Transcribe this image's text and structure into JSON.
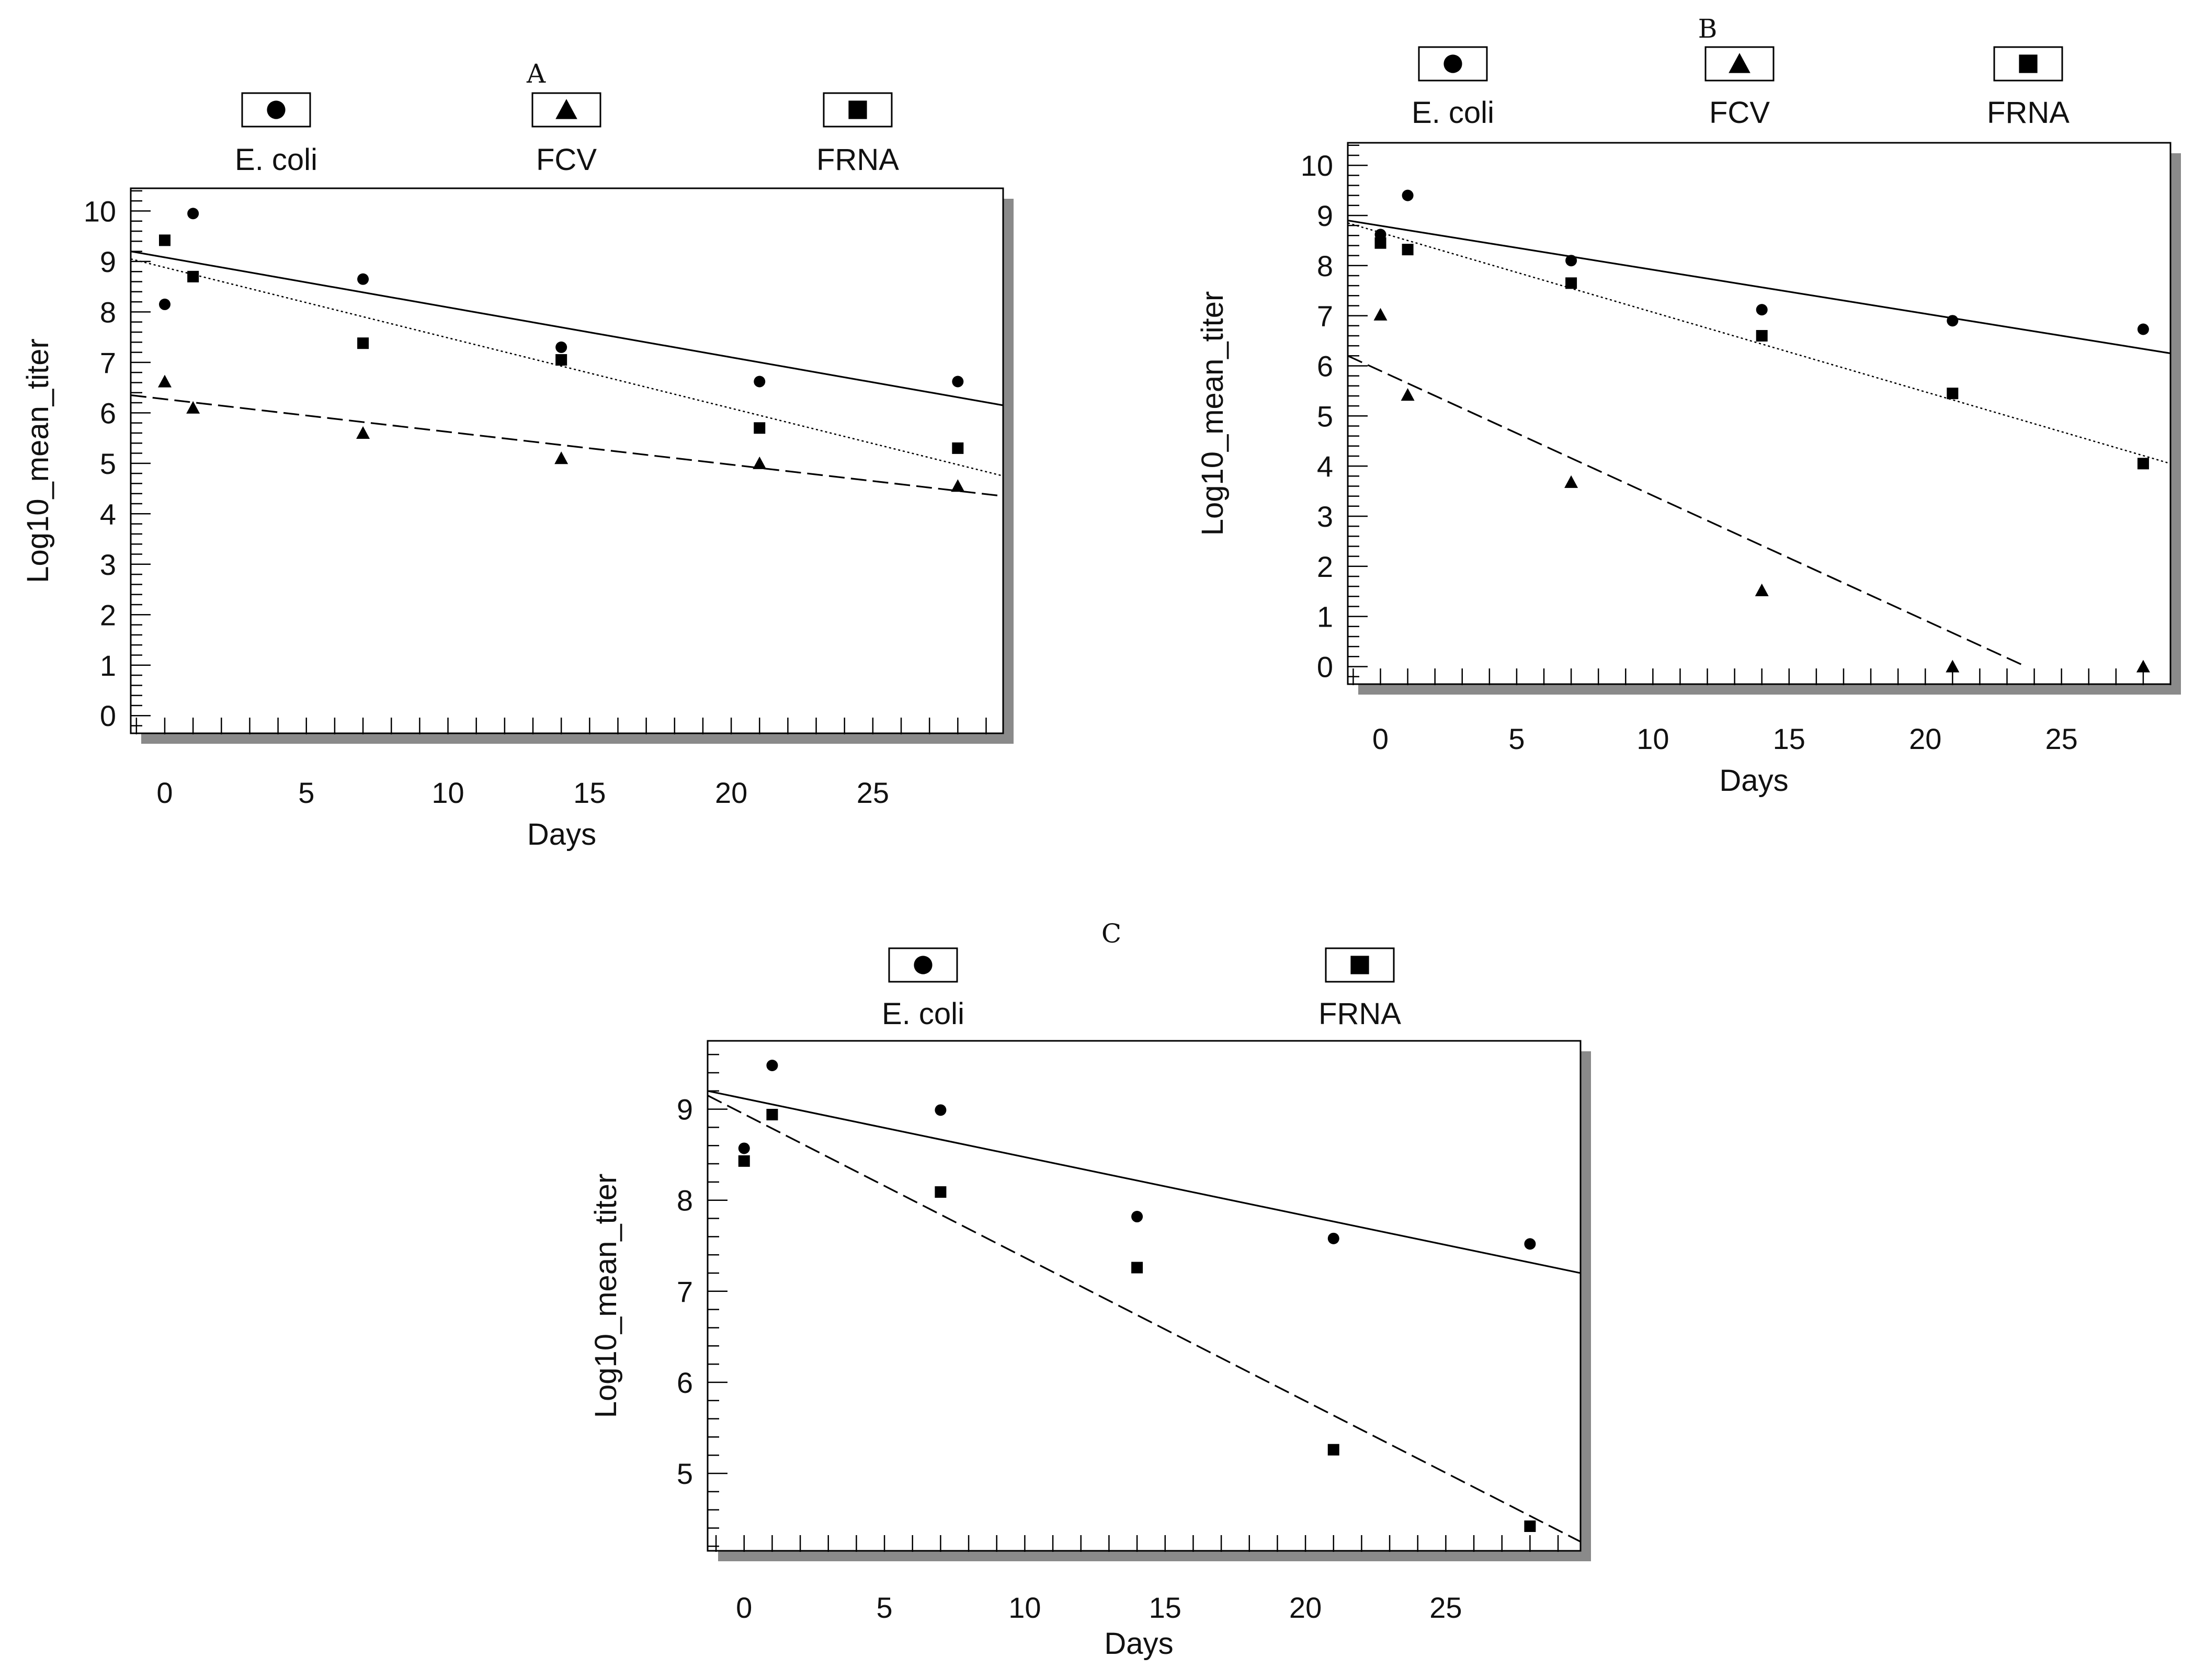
{
  "chart_data": [
    {
      "panel": "A",
      "type": "scatter",
      "xlabel": "Days",
      "ylabel": "Log10_mean_titer",
      "xlim": [
        -1.2,
        29.6
      ],
      "ylim": [
        -0.35,
        10.45
      ],
      "xticks": [
        0,
        5,
        10,
        15,
        20,
        25
      ],
      "yticks": [
        0,
        1,
        2,
        3,
        4,
        5,
        6,
        7,
        8,
        9,
        10
      ],
      "legend": {
        "placement": "top"
      },
      "series": [
        {
          "name": "E. coli",
          "marker": "circle",
          "line": "solid",
          "x": [
            0,
            1,
            7,
            14,
            21,
            28
          ],
          "y": [
            8.15,
            9.95,
            8.65,
            7.3,
            6.62,
            6.62
          ],
          "fit": {
            "x": [
              -1.2,
              29.6
            ],
            "y": [
              9.2,
              6.15
            ]
          }
        },
        {
          "name": "FCV",
          "marker": "triangle",
          "line": "dashed",
          "x": [
            0,
            1,
            7,
            14,
            21,
            28
          ],
          "y": [
            6.62,
            6.1,
            5.6,
            5.1,
            5.0,
            4.55
          ],
          "fit": {
            "x": [
              -1.2,
              29.6
            ],
            "y": [
              6.35,
              4.35
            ]
          }
        },
        {
          "name": "FRNA",
          "marker": "square",
          "line": "dotted",
          "x": [
            0,
            1,
            7,
            14,
            21,
            28
          ],
          "y": [
            9.42,
            8.7,
            7.38,
            7.05,
            5.7,
            5.3
          ],
          "fit": {
            "x": [
              -1.2,
              29.6
            ],
            "y": [
              9.05,
              4.75
            ]
          }
        }
      ]
    },
    {
      "panel": "B",
      "type": "scatter",
      "xlabel": "Days",
      "ylabel": "Log10_mean_titer",
      "xlim": [
        -1.2,
        29.0
      ],
      "ylim": [
        -0.35,
        10.45
      ],
      "xticks": [
        0,
        5,
        10,
        15,
        20,
        25
      ],
      "yticks": [
        0,
        1,
        2,
        3,
        4,
        5,
        6,
        7,
        8,
        9,
        10
      ],
      "legend": {
        "placement": "top"
      },
      "series": [
        {
          "name": "E. coli",
          "marker": "circle",
          "line": "solid",
          "x": [
            0,
            1,
            7,
            14,
            21,
            28
          ],
          "y": [
            8.62,
            9.4,
            8.1,
            7.12,
            6.9,
            6.73
          ],
          "fit": {
            "x": [
              -1.2,
              29.0
            ],
            "y": [
              8.9,
              6.25
            ]
          }
        },
        {
          "name": "FCV",
          "marker": "triangle",
          "line": "dashed",
          "x": [
            0,
            1,
            7,
            14,
            21,
            28
          ],
          "y": [
            7.02,
            5.42,
            3.68,
            1.52,
            0.0,
            0.0
          ],
          "fit": {
            "x": [
              -1.2,
              23.7
            ],
            "y": [
              6.2,
              0.0
            ]
          }
        },
        {
          "name": "FRNA",
          "marker": "square",
          "line": "dotted",
          "x": [
            0,
            1,
            7,
            14,
            21,
            28
          ],
          "y": [
            8.45,
            8.32,
            7.65,
            6.6,
            5.45,
            4.05
          ],
          "fit": {
            "x": [
              -1.2,
              29.0
            ],
            "y": [
              8.85,
              4.05
            ]
          }
        }
      ]
    },
    {
      "panel": "C",
      "type": "scatter",
      "xlabel": "Days",
      "ylabel": "Log10_mean_titer",
      "xlim": [
        -1.3,
        29.8
      ],
      "ylim": [
        4.15,
        9.75
      ],
      "xticks": [
        0,
        5,
        10,
        15,
        20,
        25
      ],
      "yticks": [
        5,
        6,
        7,
        8,
        9
      ],
      "legend": {
        "placement": "top"
      },
      "series": [
        {
          "name": "E. coli",
          "marker": "circle",
          "line": "solid",
          "x": [
            0,
            1,
            7,
            14,
            21,
            28
          ],
          "y": [
            8.57,
            9.48,
            8.99,
            7.82,
            7.58,
            7.52
          ],
          "fit": {
            "x": [
              -1.3,
              29.8
            ],
            "y": [
              9.2,
              7.2
            ]
          }
        },
        {
          "name": "FRNA",
          "marker": "square",
          "line": "dashed",
          "x": [
            0,
            1,
            7,
            14,
            21,
            28
          ],
          "y": [
            8.43,
            8.94,
            8.09,
            7.26,
            5.26,
            4.42
          ],
          "fit": {
            "x": [
              -1.3,
              29.8
            ],
            "y": [
              9.15,
              4.25
            ]
          }
        }
      ]
    }
  ]
}
